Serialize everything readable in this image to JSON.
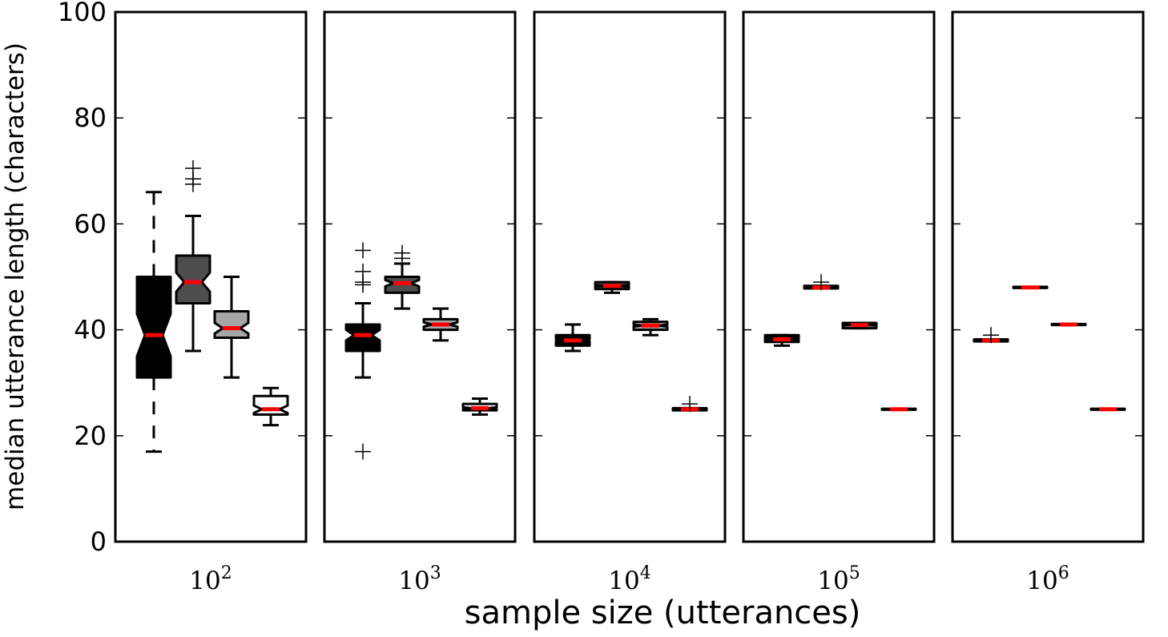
{
  "chart_data": {
    "type": "boxplot",
    "xlabel": "sample size (utterances)",
    "ylabel": "median utterance length (characters)",
    "ylim": [
      0,
      100
    ],
    "yticks": [
      0,
      20,
      40,
      60,
      80,
      100
    ],
    "ytick_labels": [
      "0",
      "20",
      "40",
      "60",
      "80",
      "100"
    ],
    "box_colors": [
      "#000000",
      "#4d4d4d",
      "#a6a6a6",
      "#ffffff"
    ],
    "median_color": "#ff0000",
    "notched": true,
    "panels": [
      {
        "label_base": "10",
        "label_exp": "2",
        "boxes": [
          {
            "q1": 31,
            "median": 39,
            "q3": 50,
            "whisker_low": 17,
            "whisker_high": 66,
            "notch_low": 35,
            "notch_high": 43,
            "outliers": []
          },
          {
            "q1": 45,
            "median": 49,
            "q3": 54,
            "whisker_low": 36,
            "whisker_high": 61.5,
            "notch_low": 47.2,
            "notch_high": 50.8,
            "outliers": [
              67.5,
              68.5,
              70.5
            ]
          },
          {
            "q1": 38.5,
            "median": 40.3,
            "q3": 43.5,
            "whisker_low": 31,
            "whisker_high": 50,
            "notch_low": 39.3,
            "notch_high": 41.3,
            "outliers": []
          },
          {
            "q1": 24,
            "median": 25,
            "q3": 27.5,
            "whisker_low": 22,
            "whisker_high": 29,
            "notch_low": 24.3,
            "notch_high": 25.7,
            "outliers": []
          }
        ]
      },
      {
        "label_base": "10",
        "label_exp": "3",
        "boxes": [
          {
            "q1": 36,
            "median": 39,
            "q3": 41,
            "whisker_low": 31,
            "whisker_high": 45,
            "notch_low": 38,
            "notch_high": 40,
            "outliers": [
              17,
              48.5,
              49,
              51,
              55
            ]
          },
          {
            "q1": 47,
            "median": 48.8,
            "q3": 50,
            "whisker_low": 44,
            "whisker_high": 52.5,
            "notch_low": 48.2,
            "notch_high": 49.4,
            "outliers": [
              53.5,
              54.5
            ]
          },
          {
            "q1": 40,
            "median": 41,
            "q3": 42,
            "whisker_low": 38,
            "whisker_high": 44,
            "notch_low": 40.6,
            "notch_high": 41.4,
            "outliers": []
          },
          {
            "q1": 24.8,
            "median": 25.2,
            "q3": 26,
            "whisker_low": 24,
            "whisker_high": 27,
            "notch_low": 25,
            "notch_high": 25.4,
            "outliers": []
          }
        ]
      },
      {
        "label_base": "10",
        "label_exp": "4",
        "boxes": [
          {
            "q1": 37,
            "median": 38,
            "q3": 39,
            "whisker_low": 36,
            "whisker_high": 41,
            "notch_low": 37.8,
            "notch_high": 38.2,
            "outliers": []
          },
          {
            "q1": 47.7,
            "median": 48.3,
            "q3": 49,
            "whisker_low": 47,
            "whisker_high": 49,
            "notch_low": 48.15,
            "notch_high": 48.45,
            "outliers": []
          },
          {
            "q1": 40,
            "median": 40.8,
            "q3": 41.5,
            "whisker_low": 39,
            "whisker_high": 42,
            "notch_low": 40.6,
            "notch_high": 41,
            "outliers": []
          },
          {
            "q1": 24.8,
            "median": 25,
            "q3": 25.2,
            "whisker_low": 24.8,
            "whisker_high": 25.2,
            "notch_low": 24.95,
            "notch_high": 25.05,
            "outliers": [
              26
            ]
          }
        ]
      },
      {
        "label_base": "10",
        "label_exp": "5",
        "boxes": [
          {
            "q1": 37.7,
            "median": 38.2,
            "q3": 39,
            "whisker_low": 37,
            "whisker_high": 39,
            "notch_low": 38.05,
            "notch_high": 38.35,
            "outliers": []
          },
          {
            "q1": 47.8,
            "median": 48,
            "q3": 48.3,
            "whisker_low": 47.8,
            "whisker_high": 48.3,
            "notch_low": 47.95,
            "notch_high": 48.05,
            "outliers": [
              49
            ]
          },
          {
            "q1": 40.3,
            "median": 40.9,
            "q3": 41.3,
            "whisker_low": 40.3,
            "whisker_high": 41.3,
            "notch_low": 40.8,
            "notch_high": 41,
            "outliers": []
          },
          {
            "q1": 24.9,
            "median": 25,
            "q3": 25.1,
            "whisker_low": 24.9,
            "whisker_high": 25.1,
            "notch_low": 24.98,
            "notch_high": 25.02,
            "outliers": []
          }
        ]
      },
      {
        "label_base": "10",
        "label_exp": "6",
        "boxes": [
          {
            "q1": 37.8,
            "median": 38,
            "q3": 38.2,
            "whisker_low": 37.8,
            "whisker_high": 38.2,
            "notch_low": 37.97,
            "notch_high": 38.03,
            "outliers": [
              39
            ]
          },
          {
            "q1": 47.9,
            "median": 48,
            "q3": 48.1,
            "whisker_low": 47.9,
            "whisker_high": 48.1,
            "notch_low": 47.98,
            "notch_high": 48.02,
            "outliers": []
          },
          {
            "q1": 40.9,
            "median": 41,
            "q3": 41.1,
            "whisker_low": 40.9,
            "whisker_high": 41.1,
            "notch_low": 40.98,
            "notch_high": 41.02,
            "outliers": []
          },
          {
            "q1": 24.9,
            "median": 25,
            "q3": 25.1,
            "whisker_low": 24.9,
            "whisker_high": 25.1,
            "notch_low": 24.98,
            "notch_high": 25.02,
            "outliers": []
          }
        ]
      }
    ]
  }
}
